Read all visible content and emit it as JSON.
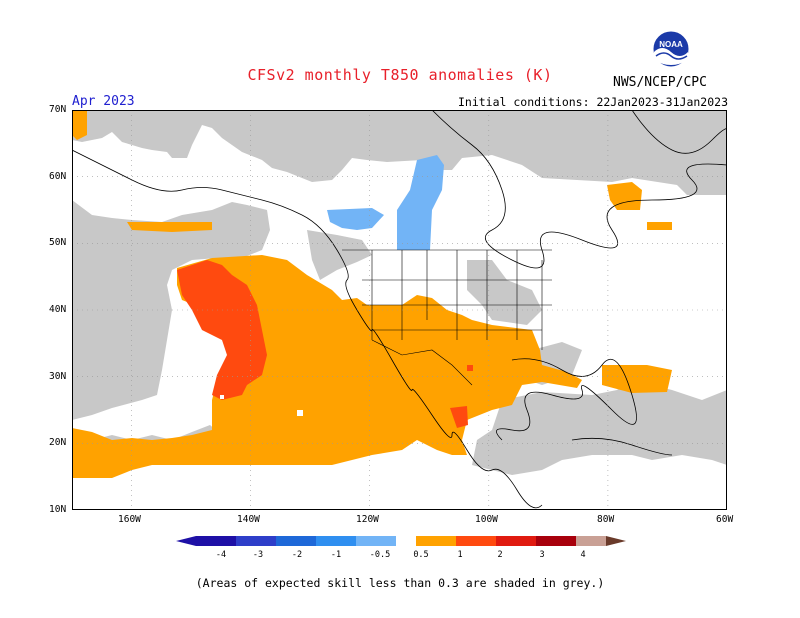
{
  "header": {
    "title": "CFSv2 monthly T850 anomalies (K)",
    "month": "Apr 2023",
    "initial_conditions": "Initial conditions: 22Jan2023-31Jan2023",
    "agency": "NWS/NCEP/CPC",
    "logo_text": "NOAA"
  },
  "axes": {
    "lat_labels": [
      "70N",
      "60N",
      "50N",
      "40N",
      "30N",
      "20N",
      "10N"
    ],
    "lon_labels": [
      "160W",
      "140W",
      "120W",
      "100W",
      "80W",
      "60W"
    ]
  },
  "colorbar": {
    "labels": [
      "-4",
      "-3",
      "-2",
      "-1",
      "-0.5",
      "0.5",
      "1",
      "2",
      "3",
      "4"
    ],
    "colors": [
      "#1e10a6",
      "#2e3ec9",
      "#1e68d8",
      "#2f8ff0",
      "#72b4f6",
      "#ffffff",
      "#ffa200",
      "#ff4a0f",
      "#e01a10",
      "#a8000c",
      "#c9a095",
      "#6a3a2a"
    ]
  },
  "colors": {
    "grey": "#c8c8c8",
    "orange": "#ffa200",
    "red": "#ff4a0f",
    "blue": "#72b4f6",
    "text_red": "#e8202a",
    "text_blue": "#2020d0"
  },
  "footer": {
    "skill_note": "(Areas of expected skill less than 0.3 are shaded in grey.)"
  }
}
